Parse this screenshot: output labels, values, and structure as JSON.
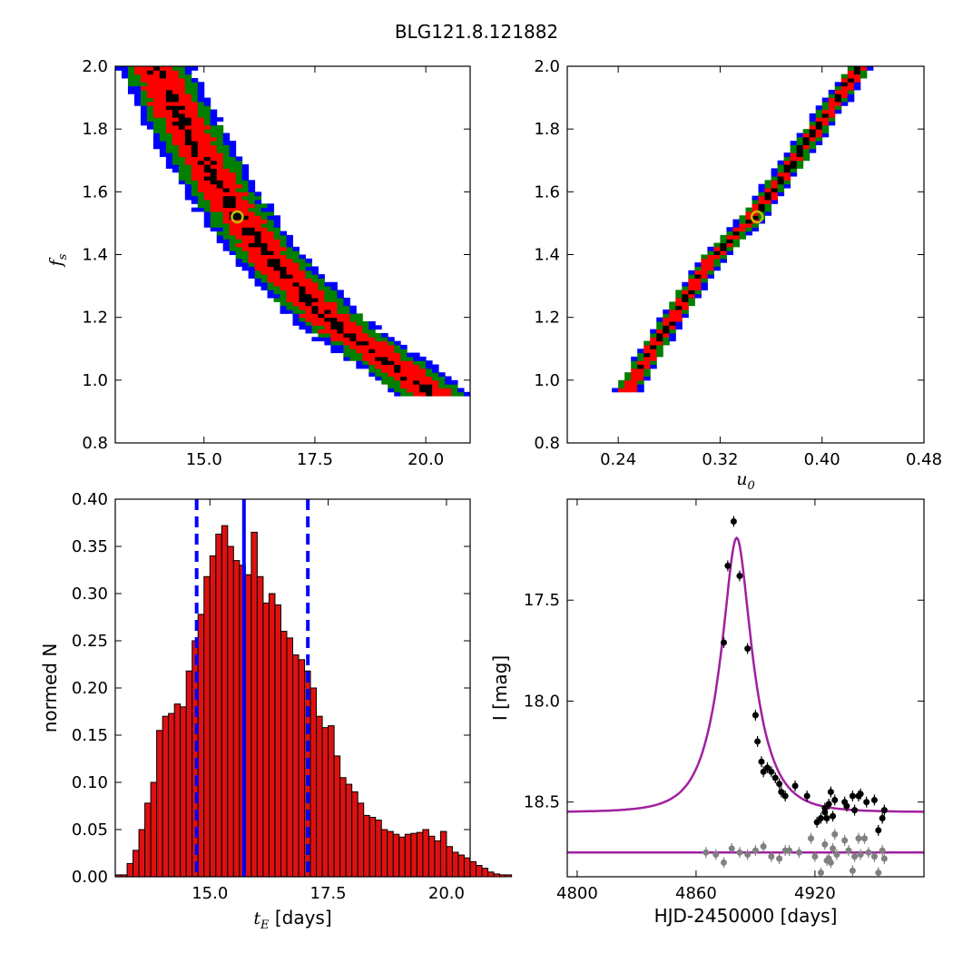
{
  "figure": {
    "title": "BLG121.8.121882"
  },
  "colors": {
    "sigma1": "#000000",
    "sigma2": "#ff0000",
    "sigma3": "#007f00",
    "sigma4": "#0000ff",
    "best": "#bfbf00",
    "hist": "#dd1111",
    "vline": "#0000ff",
    "model": "#a020a0",
    "data1": "#000000",
    "data2": "#808080"
  },
  "chart_data": [
    {
      "id": "p1",
      "type": "heatmap",
      "xlabel": "",
      "ylabel_main": "f",
      "ylabel_sub": "s",
      "xlim": [
        13.0,
        21.0
      ],
      "ylim": [
        0.8,
        2.0
      ],
      "xticks": [
        "15.0",
        "17.5",
        "20.0"
      ],
      "xtick_values": [
        15.0,
        17.5,
        20.0
      ],
      "yticks": [
        "0.8",
        "1.0",
        "1.2",
        "1.4",
        "1.6",
        "1.8",
        "2.0"
      ],
      "ytick_values": [
        0.8,
        1.0,
        1.2,
        1.4,
        1.6,
        1.8,
        2.0
      ],
      "ridge": [
        [
          13.9,
          2.0
        ],
        [
          14.6,
          1.8
        ],
        [
          15.4,
          1.6
        ],
        [
          16.4,
          1.4
        ],
        [
          17.3,
          1.27
        ],
        [
          18.0,
          1.17
        ],
        [
          19.3,
          1.05
        ],
        [
          20.2,
          0.95
        ]
      ],
      "band_half_width_x": [
        0.15,
        0.45,
        0.7,
        0.85
      ],
      "best_fit": {
        "x": 15.75,
        "y": 1.52
      }
    },
    {
      "id": "p2",
      "type": "heatmap",
      "xlabel_main": "u",
      "xlabel_sub": "0",
      "ylabel": "",
      "xlim": [
        0.2,
        0.48
      ],
      "ylim": [
        0.8,
        2.0
      ],
      "xticks": [
        "0.24",
        "0.32",
        "0.40",
        "0.48"
      ],
      "xtick_values": [
        0.24,
        0.32,
        0.4,
        0.48
      ],
      "yticks": [
        "0.8",
        "1.0",
        "1.2",
        "1.4",
        "1.6",
        "1.8",
        "2.0"
      ],
      "ytick_values": [
        0.8,
        1.0,
        1.2,
        1.4,
        1.6,
        1.8,
        2.0
      ],
      "ridge": [
        [
          0.246,
          0.96
        ],
        [
          0.275,
          1.15
        ],
        [
          0.312,
          1.38
        ],
        [
          0.346,
          1.52
        ],
        [
          0.385,
          1.74
        ],
        [
          0.43,
          2.0
        ]
      ],
      "band_half_width_x": [
        0.002,
        0.005,
        0.008,
        0.01
      ],
      "best_fit": {
        "x": 0.349,
        "y": 1.52
      }
    },
    {
      "id": "p3",
      "type": "bar",
      "xlabel_main": "t",
      "xlabel_sub": "E",
      "xlabel_rest": " [days]",
      "ylabel": "normed N",
      "xlim": [
        13.0,
        20.5
      ],
      "ylim": [
        0.0,
        0.4
      ],
      "xticks": [
        "15.0",
        "17.5",
        "20.0"
      ],
      "xtick_values": [
        15.0,
        17.5,
        20.0
      ],
      "yticks": [
        "0.00",
        "0.05",
        "0.10",
        "0.15",
        "0.20",
        "0.25",
        "0.30",
        "0.35",
        "0.40"
      ],
      "ytick_values": [
        0.0,
        0.05,
        0.1,
        0.15,
        0.2,
        0.25,
        0.3,
        0.35,
        0.4
      ],
      "bin_start": 13.0,
      "bin_width": 0.125,
      "values": [
        0.002,
        0.002,
        0.014,
        0.028,
        0.05,
        0.078,
        0.1,
        0.155,
        0.17,
        0.173,
        0.183,
        0.18,
        0.218,
        0.25,
        0.278,
        0.318,
        0.34,
        0.363,
        0.372,
        0.35,
        0.335,
        0.33,
        0.32,
        0.365,
        0.318,
        0.29,
        0.3,
        0.288,
        0.26,
        0.253,
        0.235,
        0.23,
        0.218,
        0.2,
        0.17,
        0.158,
        0.16,
        0.128,
        0.105,
        0.098,
        0.09,
        0.078,
        0.065,
        0.063,
        0.06,
        0.05,
        0.048,
        0.045,
        0.042,
        0.045,
        0.046,
        0.047,
        0.05,
        0.043,
        0.038,
        0.048,
        0.032,
        0.026,
        0.023,
        0.02,
        0.016,
        0.012,
        0.009,
        0.005,
        0.003,
        0.002,
        0.002
      ],
      "vline_solid": 15.72,
      "vlines_dashed": [
        14.72,
        17.07
      ]
    },
    {
      "id": "p4",
      "type": "scatter",
      "xlabel": "HJD-2450000 [days]",
      "ylabel": "I [mag]",
      "xlim": [
        4795,
        4975
      ],
      "ylim": [
        18.87,
        17.0
      ],
      "y_inverted": true,
      "xticks": [
        "4800",
        "4860",
        "4920"
      ],
      "xtick_values": [
        4800,
        4860,
        4920
      ],
      "yticks": [
        "17.5",
        "18.0",
        "18.5"
      ],
      "ytick_values": [
        17.5,
        18.0,
        18.5
      ],
      "model": {
        "t0": 4880.5,
        "tE": 15.75,
        "u0": 0.349,
        "fs": 1.52,
        "base_mag": 18.55
      },
      "second_model_level": 18.75,
      "series": [
        {
          "name": "",
          "color": "#000000",
          "points": [
            [
              4874,
              17.71
            ],
            [
              4876,
              17.33
            ],
            [
              4879,
              17.11
            ],
            [
              4882,
              17.38
            ],
            [
              4886,
              17.74
            ],
            [
              4890,
              18.07
            ],
            [
              4891,
              18.2
            ],
            [
              4893,
              18.3
            ],
            [
              4894,
              18.35
            ],
            [
              4896,
              18.33
            ],
            [
              4898,
              18.35
            ],
            [
              4900,
              18.38
            ],
            [
              4902,
              18.41
            ],
            [
              4903,
              18.45
            ],
            [
              4905,
              18.47
            ],
            [
              4910,
              18.42
            ],
            [
              4916,
              18.47
            ],
            [
              4921,
              18.6
            ],
            [
              4923,
              18.58
            ],
            [
              4925,
              18.55
            ],
            [
              4925,
              18.53
            ],
            [
              4926,
              18.58
            ],
            [
              4927,
              18.51
            ],
            [
              4928,
              18.45
            ],
            [
              4929,
              18.57
            ],
            [
              4930,
              18.49
            ],
            [
              4935,
              18.5
            ],
            [
              4936,
              18.52
            ],
            [
              4939,
              18.47
            ],
            [
              4940,
              18.54
            ],
            [
              4942,
              18.47
            ],
            [
              4943,
              18.46
            ],
            [
              4946,
              18.5
            ],
            [
              4950,
              18.49
            ],
            [
              4952,
              18.64
            ],
            [
              4954,
              18.58
            ],
            [
              4955,
              18.54
            ]
          ]
        },
        {
          "name": "",
          "color": "#808080",
          "points": [
            [
              4865,
              18.75
            ],
            [
              4870,
              18.76
            ],
            [
              4874,
              18.8
            ],
            [
              4878,
              18.73
            ],
            [
              4882,
              18.75
            ],
            [
              4886,
              18.76
            ],
            [
              4890,
              18.74
            ],
            [
              4894,
              18.72
            ],
            [
              4898,
              18.77
            ],
            [
              4902,
              18.78
            ],
            [
              4905,
              18.74
            ],
            [
              4907,
              18.74
            ],
            [
              4912,
              18.75
            ],
            [
              4918,
              18.68
            ],
            [
              4920,
              18.77
            ],
            [
              4923,
              18.85
            ],
            [
              4925,
              18.71
            ],
            [
              4926,
              18.79
            ],
            [
              4927,
              18.78
            ],
            [
              4928,
              18.8
            ],
            [
              4929,
              18.73
            ],
            [
              4930,
              18.66
            ],
            [
              4931,
              18.76
            ],
            [
              4935,
              18.69
            ],
            [
              4937,
              18.74
            ],
            [
              4939,
              18.84
            ],
            [
              4940,
              18.77
            ],
            [
              4942,
              18.68
            ],
            [
              4943,
              18.76
            ],
            [
              4945,
              18.68
            ],
            [
              4947,
              18.75
            ],
            [
              4950,
              18.77
            ],
            [
              4952,
              18.85
            ],
            [
              4954,
              18.74
            ],
            [
              4955,
              18.78
            ]
          ]
        }
      ]
    }
  ]
}
